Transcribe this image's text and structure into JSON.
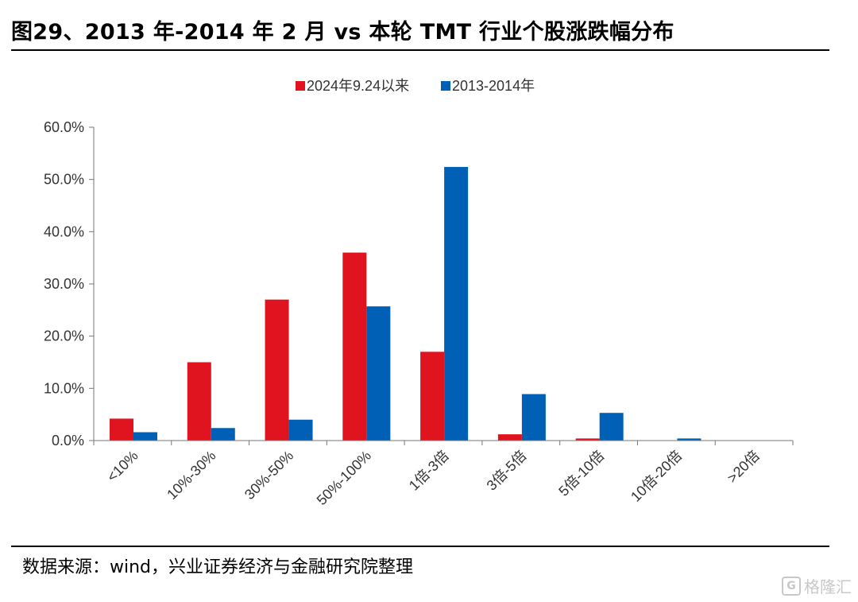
{
  "figure": {
    "title": "图29、2013 年-2014 年 2 月 vs 本轮 TMT 行业个股涨跌幅分布",
    "source": "数据来源：wind，兴业证券经济与金融研究院整理",
    "watermark_logo": "G",
    "watermark_text": "格隆汇"
  },
  "chart_data": {
    "type": "bar",
    "title": "",
    "xlabel": "",
    "ylabel": "",
    "ylim": [
      0,
      60
    ],
    "yticks": [
      "0.0%",
      "10.0%",
      "20.0%",
      "30.0%",
      "40.0%",
      "50.0%",
      "60.0%"
    ],
    "grid": false,
    "legend_position": "top-center",
    "categories": [
      "<10%",
      "10%-30%",
      "30%-50%",
      "50%-100%",
      "1倍-3倍",
      "3倍-5倍",
      "5倍-10倍",
      "10倍-20倍",
      ">20倍"
    ],
    "series": [
      {
        "name": "2024年9.24以来",
        "color": "#E0141E",
        "values": [
          4.2,
          15.0,
          27.0,
          36.0,
          17.0,
          1.2,
          0.4,
          0.0,
          0.0
        ]
      },
      {
        "name": "2013-2014年",
        "color": "#0060B6",
        "values": [
          1.6,
          2.4,
          4.0,
          25.7,
          52.4,
          8.9,
          5.3,
          0.4,
          0.0
        ]
      }
    ]
  }
}
